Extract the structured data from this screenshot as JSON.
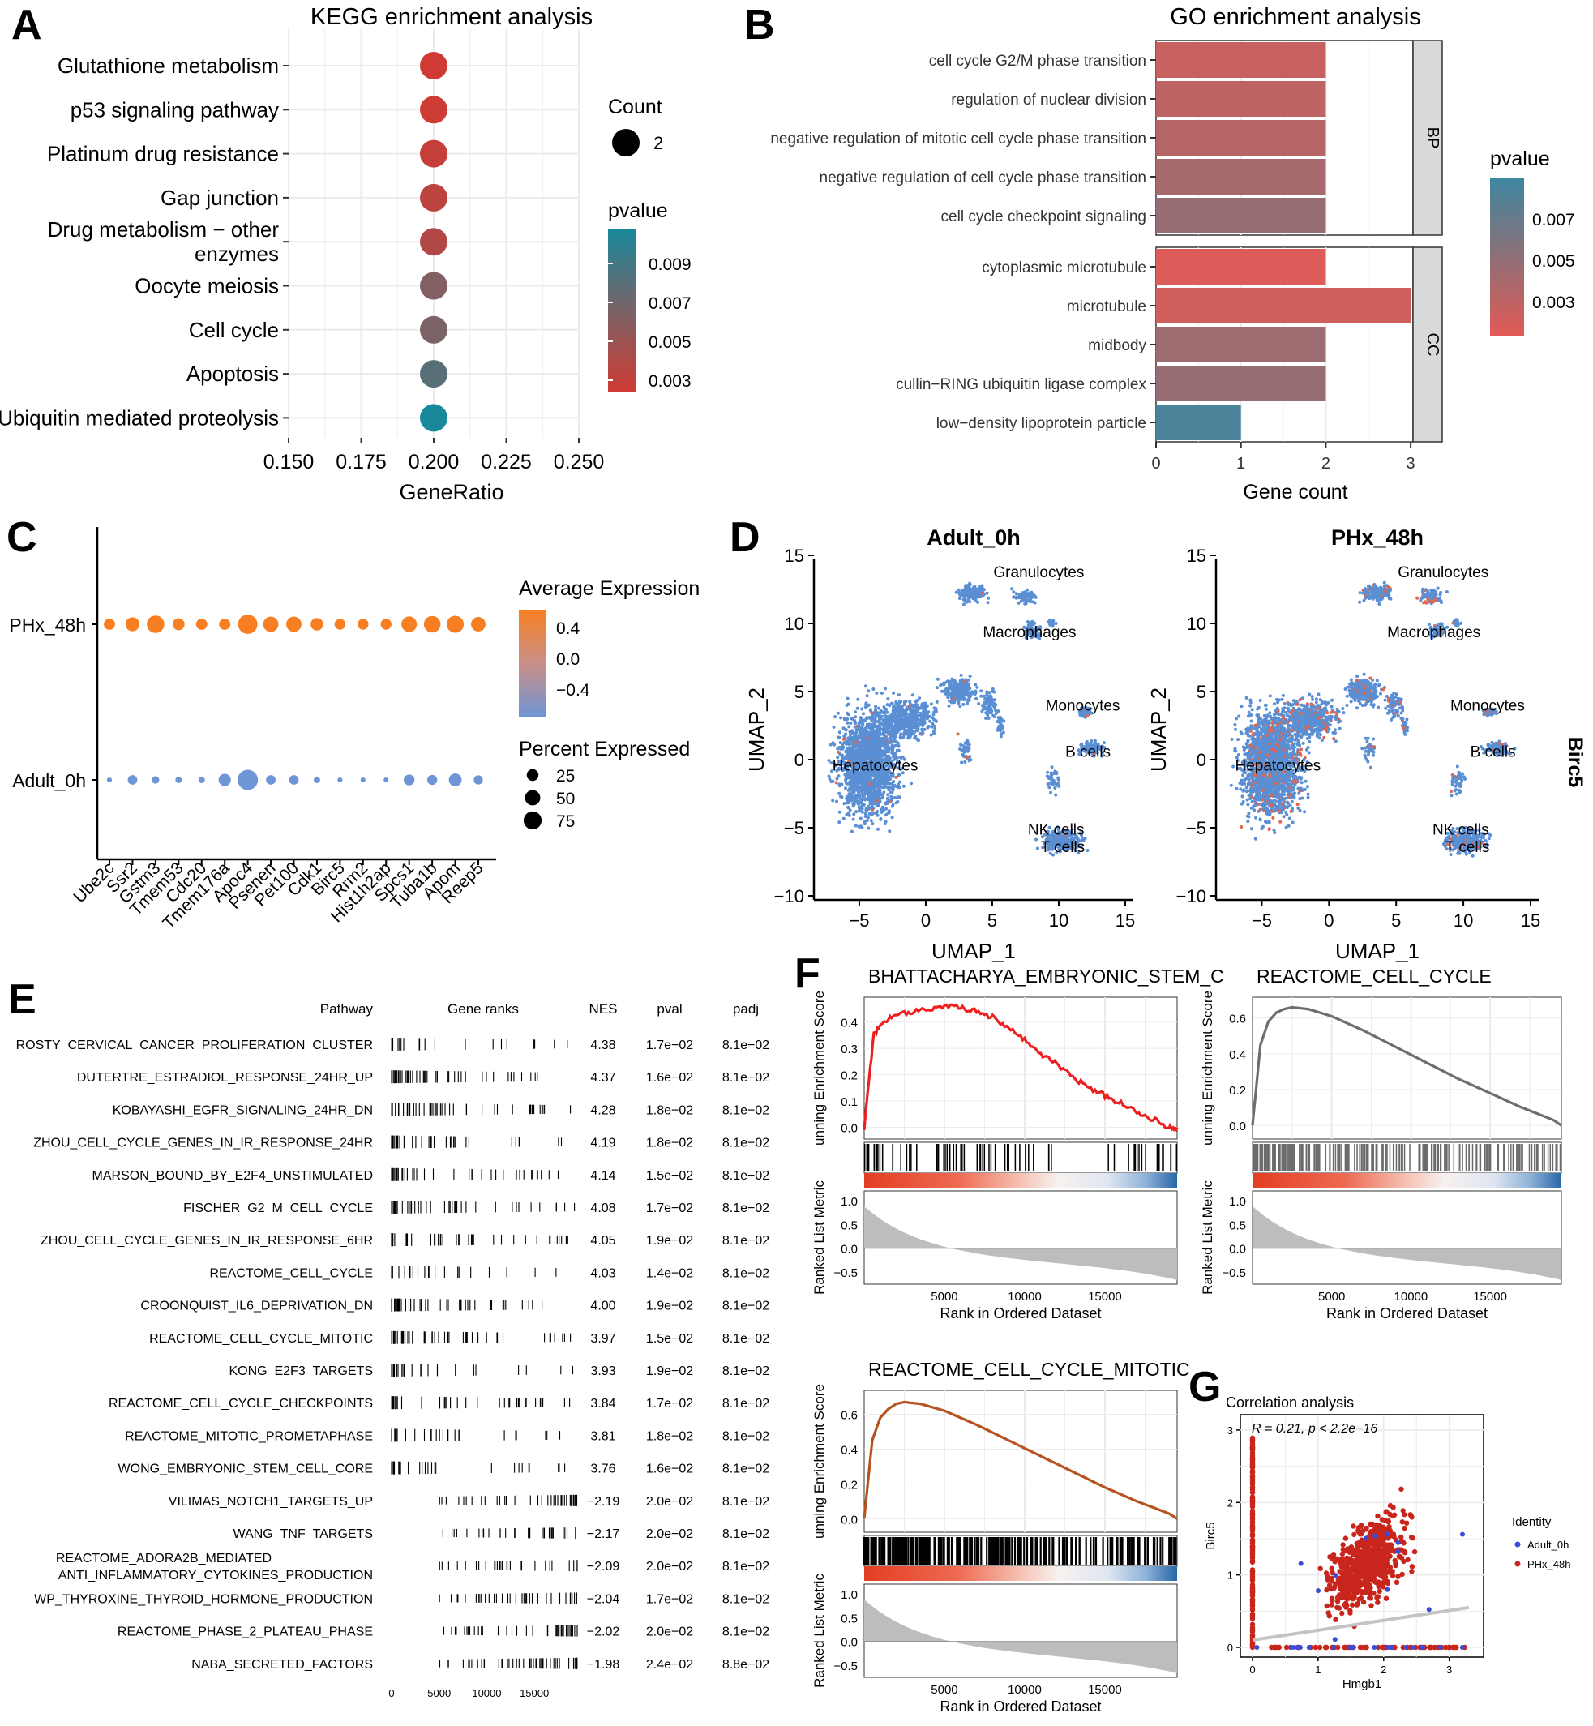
{
  "panels": {
    "A": {
      "letter": "A",
      "title": "KEGG enrichment analysis",
      "xlabel": "GeneRatio",
      "xticks": [
        "0.150",
        "0.175",
        "0.200",
        "0.225",
        "0.250"
      ],
      "xlim": [
        0.15,
        0.25
      ],
      "size_legend_title": "Count",
      "size_legend_value": "2",
      "color_legend_title": "pvalue",
      "color_ticks": [
        "0.009",
        "0.007",
        "0.005",
        "0.003"
      ],
      "colors": {
        "low": "#cf3b34",
        "mid": "#7a6266",
        "high": "#18889a"
      },
      "pathways": [
        {
          "lines": [
            "Glutathione metabolism"
          ],
          "gene_ratio": 0.2,
          "count": 2,
          "pvalue": 0.0028
        },
        {
          "lines": [
            "p53 signaling pathway"
          ],
          "gene_ratio": 0.2,
          "count": 2,
          "pvalue": 0.0029
        },
        {
          "lines": [
            "Platinum drug resistance"
          ],
          "gene_ratio": 0.2,
          "count": 2,
          "pvalue": 0.0032
        },
        {
          "lines": [
            "Gap junction"
          ],
          "gene_ratio": 0.2,
          "count": 2,
          "pvalue": 0.0036
        },
        {
          "lines": [
            "Drug metabolism − other",
            "enzymes"
          ],
          "gene_ratio": 0.2,
          "count": 2,
          "pvalue": 0.004
        },
        {
          "lines": [
            "Oocyte meiosis"
          ],
          "gene_ratio": 0.2,
          "count": 2,
          "pvalue": 0.006
        },
        {
          "lines": [
            "Cell cycle"
          ],
          "gene_ratio": 0.2,
          "count": 2,
          "pvalue": 0.0063
        },
        {
          "lines": [
            "Apoptosis"
          ],
          "gene_ratio": 0.2,
          "count": 2,
          "pvalue": 0.0075
        },
        {
          "lines": [
            "Ubiquitin mediated proteolysis"
          ],
          "gene_ratio": 0.2,
          "count": 2,
          "pvalue": 0.0098
        }
      ]
    },
    "B": {
      "letter": "B",
      "title": "GO enrichment analysis",
      "xlabel": "Gene count",
      "xticks": [
        "0",
        "1",
        "2",
        "3"
      ],
      "color_legend_title": "pvalue",
      "color_ticks": [
        "0.007",
        "0.005",
        "0.003"
      ],
      "facets": [
        {
          "label": "BP",
          "terms": [
            {
              "term": "cell cycle G2/M phase transition",
              "count": 2,
              "pvalue": 0.0035
            },
            {
              "term": "regulation of nuclear division",
              "count": 2,
              "pvalue": 0.0038
            },
            {
              "term": "negative regulation of mitotic cell cycle phase transition",
              "count": 2,
              "pvalue": 0.0041
            },
            {
              "term": "negative regulation of cell cycle phase transition",
              "count": 2,
              "pvalue": 0.0047
            },
            {
              "term": "cell cycle checkpoint signaling",
              "count": 2,
              "pvalue": 0.0052
            }
          ]
        },
        {
          "label": "CC",
          "terms": [
            {
              "term": "cytoplasmic microtubule",
              "count": 2,
              "pvalue": 0.0028
            },
            {
              "term": "microtubule",
              "count": 3,
              "pvalue": 0.0032
            },
            {
              "term": "midbody",
              "count": 2,
              "pvalue": 0.005
            },
            {
              "term": "cullin−RING ubiquitin ligase complex",
              "count": 2,
              "pvalue": 0.0052
            },
            {
              "term": "low−density lipoprotein particle",
              "count": 1,
              "pvalue": 0.008
            }
          ]
        }
      ]
    },
    "C": {
      "letter": "C",
      "rows": [
        "PHx_48h",
        "Adult_0h"
      ],
      "genes": [
        "Ube2c",
        "Ssr2",
        "Gstm3",
        "Tmem53",
        "Cdc20",
        "Tmem176a",
        "Apoc4",
        "Psenen",
        "Pet100",
        "Cdk1",
        "Birc5",
        "Rrm2",
        "Hist1h2ap",
        "Spcs1",
        "Tuba1b",
        "Apom",
        "Reep5"
      ],
      "avg_expr_title": "Average Expression",
      "avg_expr_ticks": [
        "0.4",
        "0.0",
        "−0.4"
      ],
      "pct_title": "Percent Expressed",
      "pct_ticks": [
        "25",
        "50",
        "75"
      ],
      "pct_phx": [
        22,
        40,
        70,
        26,
        22,
        22,
        90,
        50,
        50,
        30,
        20,
        20,
        20,
        52,
        62,
        66,
        44
      ],
      "pct_adult": [
        2,
        16,
        8,
        5,
        5,
        30,
        100,
        16,
        16,
        5,
        2,
        2,
        2,
        22,
        18,
        34,
        14
      ]
    },
    "D": {
      "letter": "D",
      "titles": [
        "Adult_0h",
        "PHx_48h"
      ],
      "xlabel": "UMAP_1",
      "ylabel": "UMAP_2",
      "side_label": "Birc5",
      "xticks": [
        "−5",
        "0",
        "5",
        "10",
        "15"
      ],
      "yticks": [
        "15",
        "10",
        "5",
        "0",
        "−5",
        "−10"
      ],
      "clusters": [
        "Granulocytes",
        "Macrophages",
        "Monocytes",
        "B cells",
        "Hepatocytes",
        "NK cells",
        "T cells"
      ]
    },
    "E": {
      "letter": "E",
      "headers": [
        "Pathway",
        "Gene ranks",
        "NES",
        "pval",
        "padj"
      ],
      "rank_ticks": [
        "0",
        "5000",
        "10000",
        "15000"
      ],
      "rows": [
        {
          "pathway": [
            "ROSTY_CERVICAL_CANCER_PROLIFERATION_CLUSTER"
          ],
          "nes": "4.38",
          "pval": "1.7e−02",
          "padj": "8.1e−02"
        },
        {
          "pathway": [
            "DUTERTRE_ESTRADIOL_RESPONSE_24HR_UP"
          ],
          "nes": "4.37",
          "pval": "1.6e−02",
          "padj": "8.1e−02"
        },
        {
          "pathway": [
            "KOBAYASHI_EGFR_SIGNALING_24HR_DN"
          ],
          "nes": "4.28",
          "pval": "1.8e−02",
          "padj": "8.1e−02"
        },
        {
          "pathway": [
            "ZHOU_CELL_CYCLE_GENES_IN_IR_RESPONSE_24HR"
          ],
          "nes": "4.19",
          "pval": "1.8e−02",
          "padj": "8.1e−02"
        },
        {
          "pathway": [
            "MARSON_BOUND_BY_E2F4_UNSTIMULATED"
          ],
          "nes": "4.14",
          "pval": "1.5e−02",
          "padj": "8.1e−02"
        },
        {
          "pathway": [
            "FISCHER_G2_M_CELL_CYCLE"
          ],
          "nes": "4.08",
          "pval": "1.7e−02",
          "padj": "8.1e−02"
        },
        {
          "pathway": [
            "ZHOU_CELL_CYCLE_GENES_IN_IR_RESPONSE_6HR"
          ],
          "nes": "4.05",
          "pval": "1.9e−02",
          "padj": "8.1e−02"
        },
        {
          "pathway": [
            "REACTOME_CELL_CYCLE"
          ],
          "nes": "4.03",
          "pval": "1.4e−02",
          "padj": "8.1e−02"
        },
        {
          "pathway": [
            "CROONQUIST_IL6_DEPRIVATION_DN"
          ],
          "nes": "4.00",
          "pval": "1.9e−02",
          "padj": "8.1e−02"
        },
        {
          "pathway": [
            "REACTOME_CELL_CYCLE_MITOTIC"
          ],
          "nes": "3.97",
          "pval": "1.5e−02",
          "padj": "8.1e−02"
        },
        {
          "pathway": [
            "KONG_E2F3_TARGETS"
          ],
          "nes": "3.93",
          "pval": "1.9e−02",
          "padj": "8.1e−02"
        },
        {
          "pathway": [
            "REACTOME_CELL_CYCLE_CHECKPOINTS"
          ],
          "nes": "3.84",
          "pval": "1.7e−02",
          "padj": "8.1e−02"
        },
        {
          "pathway": [
            "REACTOME_MITOTIC_PROMETAPHASE"
          ],
          "nes": "3.81",
          "pval": "1.8e−02",
          "padj": "8.1e−02"
        },
        {
          "pathway": [
            "WONG_EMBRYONIC_STEM_CELL_CORE"
          ],
          "nes": "3.76",
          "pval": "1.6e−02",
          "padj": "8.1e−02"
        },
        {
          "pathway": [
            "VILIMAS_NOTCH1_TARGETS_UP"
          ],
          "nes": "−2.19",
          "pval": "2.0e−02",
          "padj": "8.1e−02"
        },
        {
          "pathway": [
            "WANG_TNF_TARGETS"
          ],
          "nes": "−2.17",
          "pval": "2.0e−02",
          "padj": "8.1e−02"
        },
        {
          "pathway": [
            "REACTOME_ADORA2B_MEDIATED",
            "ANTI_INFLAMMATORY_CYTOKINES_PRODUCTION"
          ],
          "nes": "−2.09",
          "pval": "2.0e−02",
          "padj": "8.1e−02"
        },
        {
          "pathway": [
            "WP_THYROXINE_THYROID_HORMONE_PRODUCTION"
          ],
          "nes": "−2.04",
          "pval": "1.7e−02",
          "padj": "8.1e−02"
        },
        {
          "pathway": [
            "REACTOME_PHASE_2_PLATEAU_PHASE"
          ],
          "nes": "−2.02",
          "pval": "2.0e−02",
          "padj": "8.1e−02"
        },
        {
          "pathway": [
            "NABA_SECRETED_FACTORS"
          ],
          "nes": "−1.98",
          "pval": "2.4e−02",
          "padj": "8.8e−02"
        }
      ]
    },
    "F": {
      "letter": "F",
      "ylabel_es": "unning Enrichment Score",
      "ylabel_metric": "Ranked List Metric",
      "xlabel": "Rank in Ordered Dataset",
      "xticks": [
        "5000",
        "10000",
        "15000"
      ],
      "metric_ticks": [
        "1.0",
        "0.5",
        "0.0",
        "−0.5"
      ],
      "plots": [
        {
          "title": "BHATTACHARYA_EMBRYONIC_STEM_C",
          "color": "#ee1f1f",
          "es_ticks": [
            "0.4",
            "0.3",
            "0.2",
            "0.1",
            "0.0"
          ],
          "es_max": 0.47,
          "es_min": -0.02,
          "curve": [
            [
              0,
              0.0
            ],
            [
              600,
              0.35
            ],
            [
              1200,
              0.4
            ],
            [
              2000,
              0.43
            ],
            [
              3000,
              0.44
            ],
            [
              4000,
              0.45
            ],
            [
              5000,
              0.46
            ],
            [
              6000,
              0.455
            ],
            [
              7000,
              0.44
            ],
            [
              8000,
              0.42
            ],
            [
              9000,
              0.38
            ],
            [
              10000,
              0.33
            ],
            [
              11000,
              0.28
            ],
            [
              12000,
              0.24
            ],
            [
              13000,
              0.19
            ],
            [
              14000,
              0.15
            ],
            [
              15000,
              0.12
            ],
            [
              16000,
              0.09
            ],
            [
              17000,
              0.06
            ],
            [
              18000,
              0.03
            ],
            [
              19000,
              0.0
            ],
            [
              19500,
              0.0
            ]
          ]
        },
        {
          "title": "REACTOME_CELL_CYCLE",
          "color": "#6e6e6e",
          "es_ticks": [
            "0.6",
            "0.4",
            "0.2",
            "0.0"
          ],
          "es_max": 0.68,
          "es_min": -0.04,
          "curve": [
            [
              0,
              0.0
            ],
            [
              500,
              0.45
            ],
            [
              1000,
              0.58
            ],
            [
              1500,
              0.63
            ],
            [
              2000,
              0.65
            ],
            [
              2500,
              0.66
            ],
            [
              3500,
              0.65
            ],
            [
              5000,
              0.61
            ],
            [
              7000,
              0.53
            ],
            [
              9000,
              0.44
            ],
            [
              11000,
              0.35
            ],
            [
              13000,
              0.26
            ],
            [
              15000,
              0.18
            ],
            [
              17000,
              0.1
            ],
            [
              19000,
              0.03
            ],
            [
              19500,
              0.0
            ]
          ]
        },
        {
          "title": "REACTOME_CELL_CYCLE_MITOTIC",
          "color": "#b5541f",
          "es_ticks": [
            "0.6",
            "0.4",
            "0.2",
            "0.0"
          ],
          "es_max": 0.7,
          "es_min": -0.04,
          "curve": [
            [
              0,
              0.0
            ],
            [
              500,
              0.45
            ],
            [
              1000,
              0.58
            ],
            [
              1500,
              0.63
            ],
            [
              2000,
              0.66
            ],
            [
              2500,
              0.67
            ],
            [
              3500,
              0.66
            ],
            [
              5000,
              0.62
            ],
            [
              7000,
              0.54
            ],
            [
              9000,
              0.45
            ],
            [
              11000,
              0.36
            ],
            [
              13000,
              0.27
            ],
            [
              15000,
              0.18
            ],
            [
              17000,
              0.1
            ],
            [
              19000,
              0.03
            ],
            [
              19500,
              0.0
            ]
          ]
        }
      ]
    },
    "G": {
      "letter": "G",
      "title": "Correlation analysis",
      "stat": "R = 0.21, p < 2.2e−16",
      "xlabel": "Hmgb1",
      "ylabel": "Birc5",
      "xticks": [
        "0",
        "1",
        "2",
        "3"
      ],
      "yticks": [
        "0",
        "1",
        "2",
        "3"
      ],
      "legend_title": "Identity",
      "legend": [
        {
          "name": "Adult_0h",
          "color": "#3b4bd8"
        },
        {
          "name": "PHx_48h",
          "color": "#c8261c"
        }
      ],
      "fit": {
        "x0": 0,
        "y0": 0.1,
        "x1": 3.3,
        "y1": 0.55
      }
    }
  }
}
